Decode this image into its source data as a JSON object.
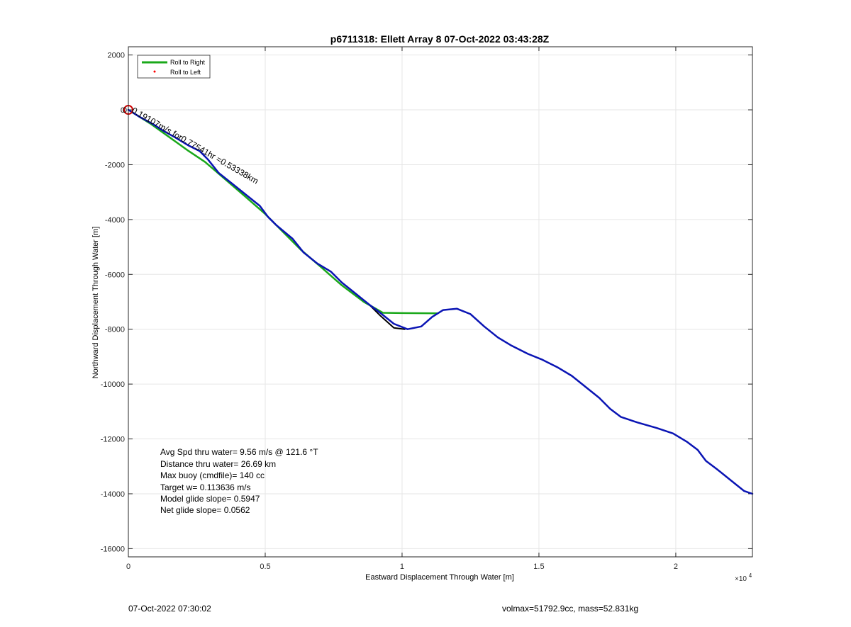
{
  "chart_data": {
    "type": "line",
    "title": "p6711318: Ellett Array 8 07-Oct-2022 03:43:28Z",
    "xlabel": "Eastward Displacement Through Water [m]",
    "ylabel": "Northward Displacement Through Water [m]",
    "xlim": [
      0,
      22800
    ],
    "ylim": [
      -16300,
      2300
    ],
    "x_exponent_label": "×10",
    "x_exponent_power": "4",
    "x_ticks": [
      {
        "value": 0,
        "label": "0"
      },
      {
        "value": 5000,
        "label": "0.5"
      },
      {
        "value": 10000,
        "label": "1"
      },
      {
        "value": 15000,
        "label": "1.5"
      },
      {
        "value": 20000,
        "label": "2"
      }
    ],
    "y_ticks": [
      {
        "value": 2000,
        "label": "2000"
      },
      {
        "value": 0,
        "label": "0"
      },
      {
        "value": -2000,
        "label": "-2000"
      },
      {
        "value": -4000,
        "label": "-4000"
      },
      {
        "value": -6000,
        "label": "-6000"
      },
      {
        "value": -8000,
        "label": "-8000"
      },
      {
        "value": -10000,
        "label": "-10000"
      },
      {
        "value": -12000,
        "label": "-12000"
      },
      {
        "value": -14000,
        "label": "-14000"
      },
      {
        "value": -16000,
        "label": "-16000"
      }
    ],
    "grid": true,
    "legend": {
      "placement": "top-left",
      "entries": [
        {
          "label": "Roll to Right",
          "color": "#1aa81a",
          "marker": "line"
        },
        {
          "label": "Roll to Left",
          "color": "#ff0000",
          "marker": "dot"
        }
      ]
    },
    "series": [
      {
        "color": "#1aa81a",
        "points": [
          [
            0,
            0
          ],
          [
            800,
            -500
          ],
          [
            1500,
            -1000
          ],
          [
            2200,
            -1500
          ],
          [
            2800,
            -1900
          ],
          [
            3500,
            -2500
          ],
          [
            4200,
            -3100
          ],
          [
            5000,
            -3800
          ],
          [
            5600,
            -4400
          ],
          [
            6300,
            -5100
          ],
          [
            7000,
            -5700
          ],
          [
            7800,
            -6400
          ],
          [
            8600,
            -7000
          ],
          [
            9300,
            -7400
          ],
          [
            10000,
            -7410
          ],
          [
            11300,
            -7420
          ]
        ]
      },
      {
        "color": "#000000",
        "points": [
          [
            0,
            0
          ],
          [
            400,
            -250
          ],
          [
            900,
            -520
          ],
          [
            1300,
            -780
          ],
          [
            1700,
            -1000
          ],
          [
            2200,
            -1300
          ],
          [
            2600,
            -1500
          ],
          [
            2900,
            -1800
          ],
          [
            3300,
            -2300
          ],
          [
            3800,
            -2700
          ],
          [
            4300,
            -3100
          ],
          [
            4800,
            -3500
          ],
          [
            5100,
            -3900
          ],
          [
            5400,
            -4200
          ],
          [
            6000,
            -4700
          ],
          [
            6400,
            -5200
          ],
          [
            6900,
            -5600
          ],
          [
            7400,
            -5900
          ],
          [
            7800,
            -6300
          ],
          [
            8300,
            -6700
          ],
          [
            8800,
            -7100
          ],
          [
            9200,
            -7500
          ],
          [
            9700,
            -7950
          ],
          [
            10100,
            -8000
          ]
        ]
      },
      {
        "color": "#0a14b4",
        "points": [
          [
            0,
            0
          ],
          [
            400,
            -250
          ],
          [
            900,
            -520
          ],
          [
            1300,
            -780
          ],
          [
            1700,
            -1000
          ],
          [
            2200,
            -1300
          ],
          [
            2600,
            -1500
          ],
          [
            2900,
            -1800
          ],
          [
            3300,
            -2300
          ],
          [
            3800,
            -2700
          ],
          [
            4300,
            -3100
          ],
          [
            4800,
            -3500
          ],
          [
            5100,
            -3900
          ],
          [
            5400,
            -4200
          ],
          [
            6000,
            -4700
          ],
          [
            6400,
            -5200
          ],
          [
            6900,
            -5600
          ],
          [
            7400,
            -5900
          ],
          [
            7800,
            -6300
          ],
          [
            8300,
            -6700
          ],
          [
            8800,
            -7100
          ],
          [
            9200,
            -7400
          ],
          [
            9700,
            -7800
          ],
          [
            10200,
            -8000
          ],
          [
            10700,
            -7900
          ],
          [
            11100,
            -7550
          ],
          [
            11500,
            -7300
          ],
          [
            12000,
            -7250
          ],
          [
            12500,
            -7450
          ],
          [
            13000,
            -7900
          ],
          [
            13500,
            -8300
          ],
          [
            14000,
            -8600
          ],
          [
            14600,
            -8900
          ],
          [
            15100,
            -9100
          ],
          [
            15700,
            -9400
          ],
          [
            16200,
            -9700
          ],
          [
            16700,
            -10100
          ],
          [
            17200,
            -10500
          ],
          [
            17600,
            -10900
          ],
          [
            18000,
            -11200
          ],
          [
            18600,
            -11400
          ],
          [
            19300,
            -11600
          ],
          [
            19900,
            -11800
          ],
          [
            20400,
            -12100
          ],
          [
            20800,
            -12400
          ],
          [
            21100,
            -12800
          ],
          [
            21500,
            -13100
          ],
          [
            22000,
            -13500
          ],
          [
            22500,
            -13900
          ],
          [
            22800,
            -14000
          ]
        ]
      }
    ],
    "start_marker": {
      "x": 0,
      "y": 0,
      "color": "#cc0000"
    },
    "annotation_rotated": {
      "text": "0.19107m/s for0.77541hr =0.53338km",
      "anchor_x": 100,
      "anchor_y": -80,
      "rotation_deg": 30
    },
    "start_label": "0",
    "stats_lines": [
      "Avg Spd thru water=  9.56 m/s @ 121.6 °T",
      "Distance thru water= 26.69 km",
      "Max buoy (cmdfile)= 140 cc",
      "Target w= 0.113636 m/s",
      "Model glide slope= 0.5947",
      "Net glide slope= 0.0562"
    ]
  },
  "footer": {
    "left": "07-Oct-2022 07:30:02",
    "right": "volmax=51792.9cc, mass=52.831kg"
  }
}
